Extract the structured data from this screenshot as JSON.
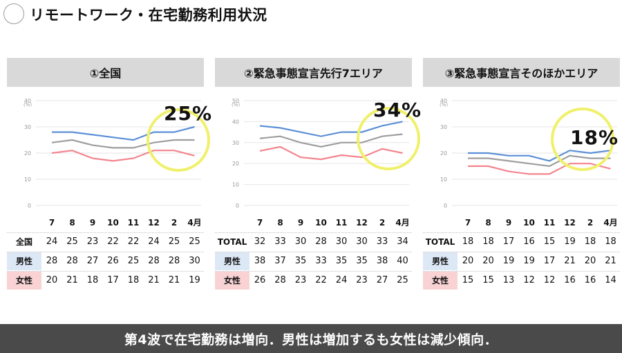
{
  "title": "リモートワーク・在宅勤務利用状況",
  "footer": "第4波で在宅勤務は増向．男性は増加するも女性は減少傾向．",
  "row_labels_sex": {
    "male": "男性",
    "female": "女性"
  },
  "colors": {
    "total": "#9e9e9e",
    "male": "#5b8fd6",
    "female": "#f4838d",
    "highlight": "#f0f06a"
  },
  "panels": [
    {
      "header": "①全国",
      "callout": "25%",
      "total_label": "全国",
      "y_max": 40,
      "y_ticks": [
        "0",
        "10",
        "20",
        "30",
        "40"
      ],
      "unit": "(%)",
      "months": [
        "7",
        "8",
        "9",
        "10",
        "11",
        "12",
        "2",
        "4月"
      ],
      "total": [
        "24",
        "25",
        "23",
        "22",
        "22",
        "24",
        "25",
        "25"
      ],
      "male": [
        "28",
        "28",
        "27",
        "26",
        "25",
        "28",
        "28",
        "30"
      ],
      "female": [
        "20",
        "21",
        "18",
        "17",
        "18",
        "21",
        "21",
        "19"
      ]
    },
    {
      "header": "②緊急事態宣言先行7エリア",
      "callout": "34%",
      "total_label": "TOTAL",
      "y_max": 50,
      "y_ticks": [
        "0",
        "10",
        "20",
        "30",
        "40",
        "50"
      ],
      "unit": "(%)",
      "months": [
        "7",
        "8",
        "9",
        "10",
        "11",
        "12",
        "2",
        "4月"
      ],
      "total": [
        "32",
        "33",
        "30",
        "28",
        "30",
        "30",
        "33",
        "34"
      ],
      "male": [
        "38",
        "37",
        "35",
        "33",
        "35",
        "35",
        "38",
        "40"
      ],
      "female": [
        "26",
        "28",
        "23",
        "22",
        "24",
        "23",
        "27",
        "25"
      ]
    },
    {
      "header": "③緊急事態宣言そのほかエリア",
      "callout": "18%",
      "total_label": "TOTAL",
      "y_max": 40,
      "y_ticks": [
        "0",
        "10",
        "20",
        "30",
        "40"
      ],
      "unit": "(%)",
      "months": [
        "7",
        "8",
        "9",
        "10",
        "11",
        "12",
        "2",
        "4月"
      ],
      "total": [
        "18",
        "18",
        "17",
        "16",
        "15",
        "19",
        "18",
        "18"
      ],
      "male": [
        "20",
        "20",
        "19",
        "19",
        "17",
        "21",
        "20",
        "21"
      ],
      "female": [
        "15",
        "15",
        "13",
        "12",
        "12",
        "16",
        "16",
        "14"
      ]
    }
  ],
  "chart_data": [
    {
      "type": "line",
      "title": "①全国",
      "x": [
        "7",
        "8",
        "9",
        "10",
        "11",
        "12",
        "2",
        "4月"
      ],
      "ylim": [
        0,
        40
      ],
      "ylabel": "(%)",
      "series": [
        {
          "name": "全国",
          "values": [
            24,
            25,
            23,
            22,
            22,
            24,
            25,
            25
          ]
        },
        {
          "name": "男性",
          "values": [
            28,
            28,
            27,
            26,
            25,
            28,
            28,
            30
          ]
        },
        {
          "name": "女性",
          "values": [
            20,
            21,
            18,
            17,
            18,
            21,
            21,
            19
          ]
        }
      ],
      "annotation": "25%"
    },
    {
      "type": "line",
      "title": "②緊急事態宣言先行7エリア",
      "x": [
        "7",
        "8",
        "9",
        "10",
        "11",
        "12",
        "2",
        "4月"
      ],
      "ylim": [
        0,
        50
      ],
      "ylabel": "(%)",
      "series": [
        {
          "name": "TOTAL",
          "values": [
            32,
            33,
            30,
            28,
            30,
            30,
            33,
            34
          ]
        },
        {
          "name": "男性",
          "values": [
            38,
            37,
            35,
            33,
            35,
            35,
            38,
            40
          ]
        },
        {
          "name": "女性",
          "values": [
            26,
            28,
            23,
            22,
            24,
            23,
            27,
            25
          ]
        }
      ],
      "annotation": "34%"
    },
    {
      "type": "line",
      "title": "③緊急事態宣言そのほかエリア",
      "x": [
        "7",
        "8",
        "9",
        "10",
        "11",
        "12",
        "2",
        "4月"
      ],
      "ylim": [
        0,
        40
      ],
      "ylabel": "(%)",
      "series": [
        {
          "name": "TOTAL",
          "values": [
            18,
            18,
            17,
            16,
            15,
            19,
            18,
            18
          ]
        },
        {
          "name": "男性",
          "values": [
            20,
            20,
            19,
            19,
            17,
            21,
            20,
            21
          ]
        },
        {
          "name": "女性",
          "values": [
            15,
            15,
            13,
            12,
            12,
            16,
            16,
            14
          ]
        }
      ],
      "annotation": "18%"
    }
  ]
}
